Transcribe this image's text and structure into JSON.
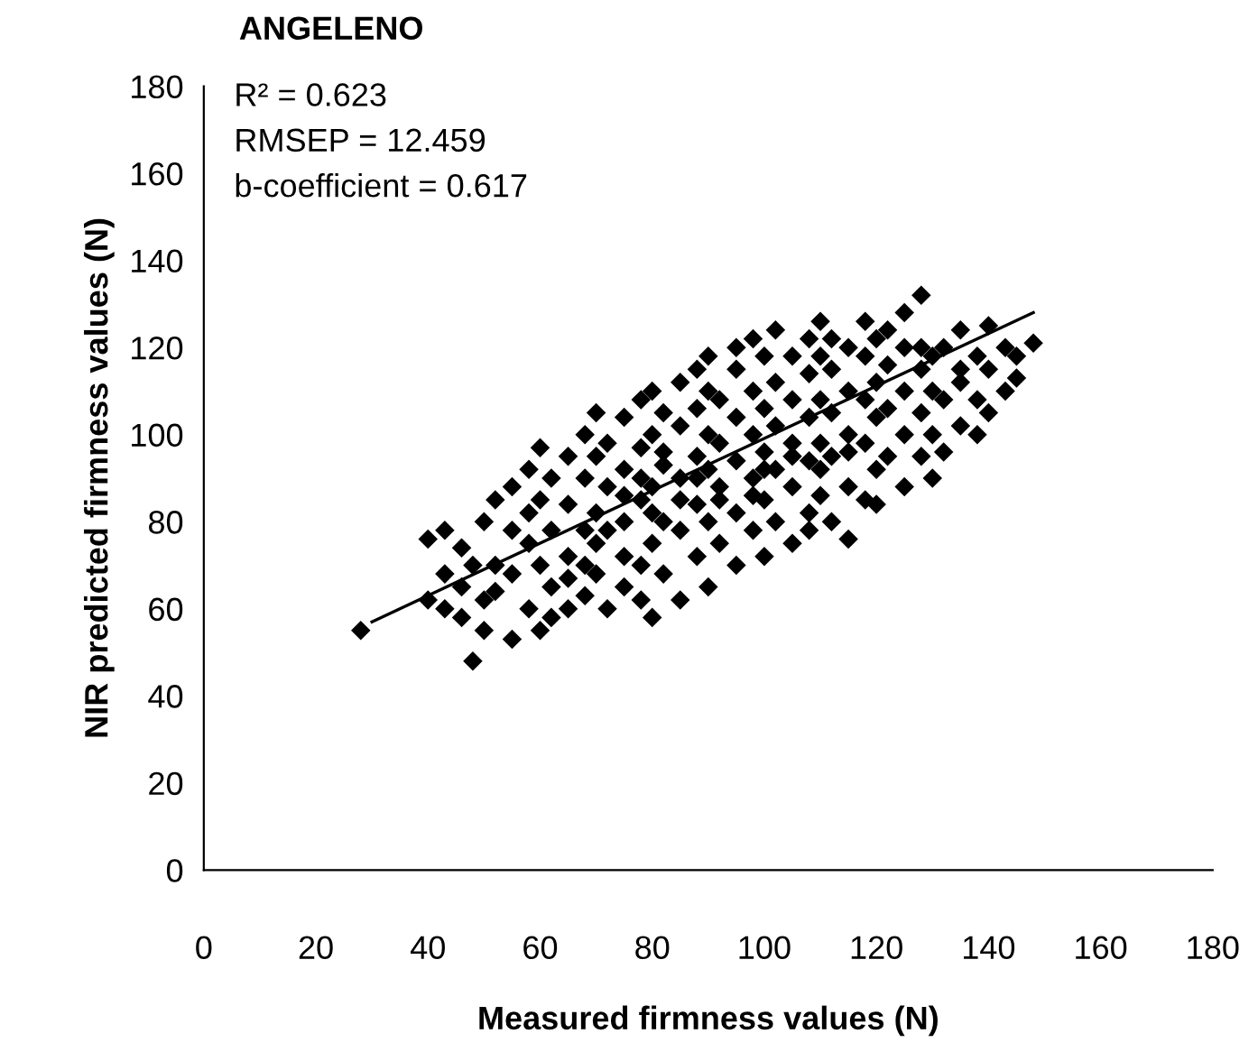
{
  "chart_data": {
    "type": "scatter",
    "title": "ANGELENO",
    "xlabel": "Measured firmness values (N)",
    "ylabel": "NIR predicted firmness values (N)",
    "annotations": [
      "R² = 0.623",
      "RMSEP = 12.459",
      "b-coefficient = 0.617"
    ],
    "xlim": [
      0,
      180
    ],
    "xticks": [
      0,
      20,
      40,
      60,
      80,
      100,
      120,
      140,
      160,
      180
    ],
    "ylim": [
      0,
      180
    ],
    "yticks": [
      0,
      20,
      40,
      60,
      80,
      100,
      120,
      140,
      160,
      180
    ],
    "grid": false,
    "legend": false,
    "series": [
      {
        "color": "#000000",
        "marker": "diamond",
        "x": [
          28,
          40,
          40,
          43,
          43,
          43,
          46,
          46,
          46,
          48,
          48,
          50,
          50,
          50,
          52,
          52,
          52,
          55,
          55,
          55,
          55,
          58,
          58,
          58,
          58,
          60,
          60,
          60,
          60,
          62,
          62,
          62,
          62,
          65,
          65,
          65,
          65,
          65,
          68,
          68,
          68,
          68,
          68,
          70,
          70,
          70,
          70,
          70,
          72,
          72,
          72,
          72,
          75,
          75,
          75,
          75,
          75,
          75,
          78,
          78,
          78,
          78,
          78,
          78,
          80,
          80,
          80,
          80,
          80,
          80,
          82,
          82,
          82,
          82,
          82,
          85,
          85,
          85,
          85,
          85,
          85,
          88,
          88,
          88,
          88,
          88,
          88,
          90,
          90,
          90,
          90,
          90,
          90,
          92,
          92,
          92,
          92,
          92,
          95,
          95,
          95,
          95,
          95,
          95,
          98,
          98,
          98,
          98,
          98,
          98,
          100,
          100,
          100,
          100,
          100,
          100,
          102,
          102,
          102,
          102,
          102,
          105,
          105,
          105,
          105,
          105,
          105,
          108,
          108,
          108,
          108,
          108,
          108,
          110,
          110,
          110,
          110,
          110,
          110,
          112,
          112,
          112,
          112,
          112,
          115,
          115,
          115,
          115,
          115,
          115,
          118,
          118,
          118,
          118,
          118,
          120,
          120,
          120,
          120,
          120,
          122,
          122,
          122,
          122,
          125,
          125,
          125,
          125,
          125,
          128,
          128,
          128,
          128,
          128,
          130,
          130,
          130,
          130,
          132,
          132,
          132,
          135,
          135,
          135,
          135,
          138,
          138,
          138,
          140,
          140,
          140,
          143,
          143,
          145,
          145,
          148
        ],
        "values": [
          55,
          62,
          76,
          60,
          78,
          68,
          65,
          74,
          58,
          48,
          70,
          62,
          80,
          55,
          70,
          85,
          64,
          53,
          68,
          78,
          88,
          60,
          75,
          92,
          82,
          55,
          70,
          85,
          97,
          65,
          78,
          90,
          58,
          60,
          72,
          84,
          95,
          67,
          63,
          78,
          90,
          100,
          70,
          68,
          82,
          95,
          75,
          105,
          60,
          88,
          98,
          78,
          65,
          80,
          92,
          104,
          72,
          86,
          70,
          85,
          97,
          108,
          62,
          90,
          58,
          75,
          88,
          100,
          110,
          82,
          68,
          80,
          93,
          105,
          96,
          62,
          78,
          90,
          102,
          112,
          85,
          72,
          84,
          95,
          106,
          115,
          90,
          65,
          80,
          92,
          100,
          110,
          118,
          75,
          88,
          98,
          108,
          85,
          70,
          82,
          94,
          104,
          115,
          120,
          78,
          90,
          100,
          110,
          122,
          86,
          72,
          85,
          96,
          106,
          118,
          92,
          80,
          92,
          102,
          112,
          124,
          75,
          88,
          98,
          108,
          118,
          95,
          82,
          94,
          104,
          114,
          122,
          78,
          86,
          98,
          108,
          118,
          126,
          92,
          80,
          95,
          105,
          115,
          122,
          88,
          100,
          110,
          120,
          96,
          76,
          85,
          98,
          108,
          118,
          126,
          92,
          104,
          112,
          122,
          84,
          95,
          106,
          116,
          124,
          88,
          100,
          110,
          120,
          128,
          95,
          105,
          115,
          132,
          120,
          100,
          110,
          118,
          90,
          96,
          108,
          120,
          102,
          112,
          124,
          115,
          108,
          118,
          100,
          105,
          115,
          125,
          110,
          120,
          113,
          118,
          121
        ]
      },
      {
        "type": "line",
        "color": "#000000",
        "x": [
          30,
          148
        ],
        "values": [
          57,
          128
        ]
      }
    ]
  }
}
